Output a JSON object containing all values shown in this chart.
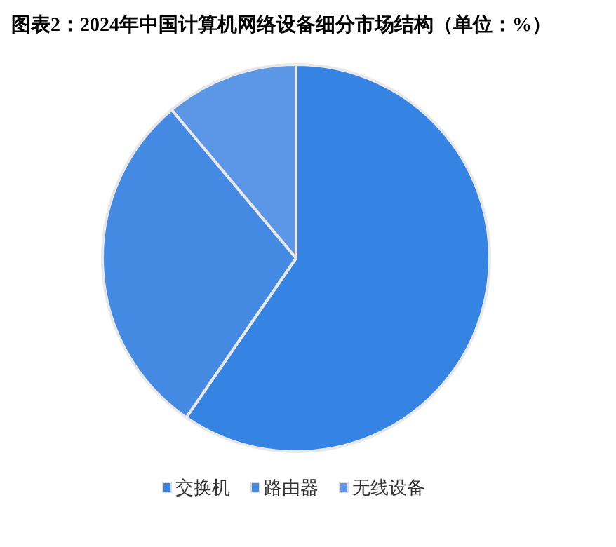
{
  "chart_data": {
    "type": "pie",
    "title": "图表2：2024年中国计算机网络设备细分市场结构（单位：%）",
    "categories": [
      "交换机",
      "路由器",
      "无线设备"
    ],
    "values": [
      59.6,
      29.3,
      11.1
    ],
    "colors": [
      "#3584e4",
      "#4489e2",
      "#5b97e6"
    ],
    "legend": "bottom"
  }
}
